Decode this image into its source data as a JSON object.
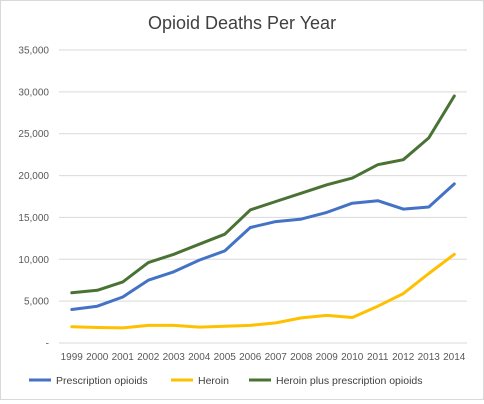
{
  "chart_data": {
    "type": "line",
    "title": "Opioid Deaths Per Year",
    "x": [
      "1999",
      "2000",
      "2001",
      "2002",
      "2003",
      "2004",
      "2005",
      "2006",
      "2007",
      "2008",
      "2009",
      "2010",
      "2011",
      "2012",
      "2013",
      "2014"
    ],
    "ylim": [
      0,
      35000
    ],
    "yticks": [
      0,
      5000,
      10000,
      15000,
      20000,
      25000,
      30000,
      35000
    ],
    "ytick_labels": [
      "-",
      "5,000",
      "10,000",
      "15,000",
      "20,000",
      "25,000",
      "30,000",
      "35,000"
    ],
    "grid": true,
    "legend_position": "bottom",
    "series": [
      {
        "name": "Prescription opioids",
        "color": "#4472C4",
        "values": [
          4000,
          4400,
          5500,
          7500,
          8500,
          9900,
          11000,
          13800,
          14500,
          14800,
          15600,
          16700,
          17000,
          16000,
          16250,
          19000
        ]
      },
      {
        "name": "Heroin",
        "color": "#FFC000",
        "values": [
          1950,
          1850,
          1800,
          2100,
          2100,
          1900,
          2000,
          2100,
          2400,
          3000,
          3300,
          3050,
          4400,
          5900,
          8300,
          10600
        ]
      },
      {
        "name": "Heroin plus prescription opioids",
        "color": "#4A7234",
        "values": [
          6000,
          6300,
          7300,
          9600,
          10600,
          11800,
          13000,
          15900,
          16900,
          17900,
          18900,
          19700,
          21300,
          21900,
          24500,
          29500
        ]
      }
    ]
  }
}
